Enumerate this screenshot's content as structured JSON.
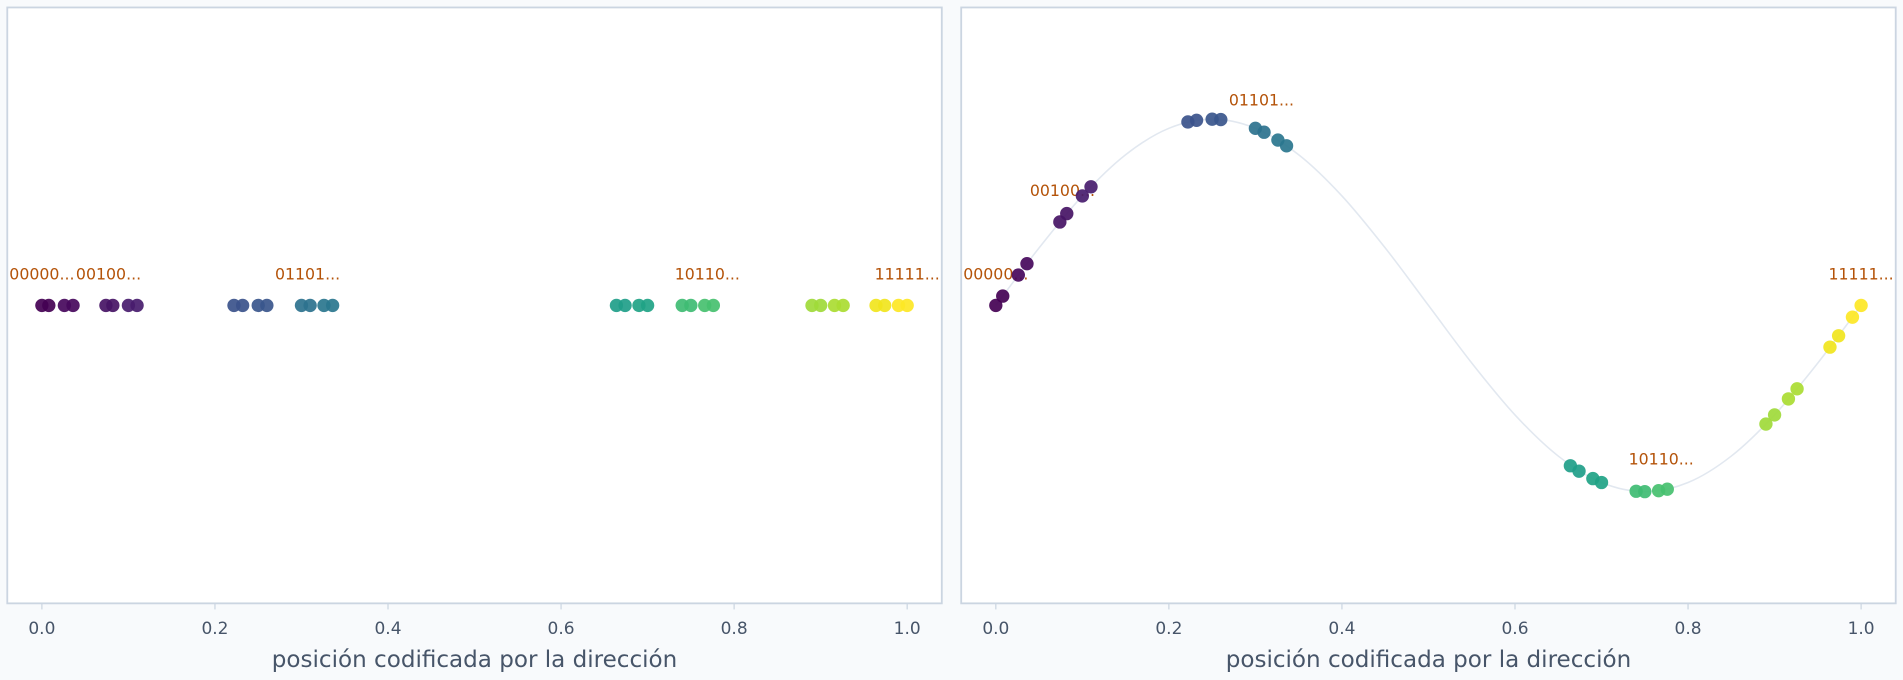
{
  "chart_data": [
    {
      "type": "scatter",
      "xlabel": "posición codificada por la dirección",
      "x": [
        0.0,
        0.008,
        0.026,
        0.036,
        0.074,
        0.082,
        0.1,
        0.11,
        0.222,
        0.232,
        0.25,
        0.26,
        0.3,
        0.31,
        0.326,
        0.336,
        0.664,
        0.674,
        0.69,
        0.7,
        0.74,
        0.75,
        0.766,
        0.776,
        0.89,
        0.9,
        0.916,
        0.926,
        0.964,
        0.974,
        0.99,
        1.0
      ],
      "values": [
        0,
        0,
        0,
        0,
        0,
        0,
        0,
        0,
        0,
        0,
        0,
        0,
        0,
        0,
        0,
        0,
        0,
        0,
        0,
        0,
        0,
        0,
        0,
        0,
        0,
        0,
        0,
        0,
        0,
        0,
        0,
        0
      ],
      "colors": [
        "#440154",
        "#440154",
        "#46085c",
        "#46085c",
        "#471365",
        "#471365",
        "#481c6e",
        "#481c6e",
        "#3b528b",
        "#3b528b",
        "#39568c",
        "#39568c",
        "#2c728e",
        "#2c728e",
        "#2a768e",
        "#2a768e",
        "#1f9e89",
        "#1f9e89",
        "#20a386",
        "#20a386",
        "#3fbc73",
        "#3fbc73",
        "#46c06f",
        "#46c06f",
        "#a0da39",
        "#a0da39",
        "#aadc32",
        "#aadc32",
        "#f1e51d",
        "#f1e51d",
        "#fde725",
        "#fde725"
      ],
      "xlim": [
        -0.04,
        1.04
      ],
      "ylim": [
        -1.6,
        1.6
      ],
      "xticks": [
        {
          "value": 0,
          "label": "0.0"
        },
        0.2,
        0.4,
        0.6,
        0.8,
        {
          "value": 1,
          "label": "1.0"
        }
      ],
      "annotations": [
        {
          "text": "00000...",
          "x": 0,
          "y": 0
        },
        {
          "text": "00100...",
          "x": 0.077,
          "y": 0
        },
        {
          "text": "01101...",
          "x": 0.307,
          "y": 0
        },
        {
          "text": "10110...",
          "x": 0.769,
          "y": 0
        },
        {
          "text": "11111...",
          "x": 1,
          "y": 0
        }
      ]
    },
    {
      "type": "scatter",
      "xlabel": "posición codificada por la dirección",
      "x": [
        0.0,
        0.008,
        0.026,
        0.036,
        0.074,
        0.082,
        0.1,
        0.11,
        0.222,
        0.232,
        0.25,
        0.26,
        0.3,
        0.31,
        0.326,
        0.336,
        0.664,
        0.674,
        0.69,
        0.7,
        0.74,
        0.75,
        0.766,
        0.776,
        0.89,
        0.9,
        0.916,
        0.926,
        0.964,
        0.974,
        0.99,
        1.0
      ],
      "values": [
        0,
        0.05,
        0.163,
        0.224,
        0.448,
        0.493,
        0.588,
        0.637,
        0.985,
        0.994,
        1,
        0.998,
        0.951,
        0.93,
        0.888,
        0.857,
        -0.861,
        -0.89,
        -0.93,
        -0.951,
        -0.998,
        -1,
        -0.995,
        -0.987,
        -0.637,
        -0.588,
        -0.502,
        -0.448,
        -0.224,
        -0.163,
        -0.063,
        0
      ],
      "colors": [
        "#440154",
        "#440154",
        "#46085c",
        "#46085c",
        "#471365",
        "#471365",
        "#481c6e",
        "#481c6e",
        "#3b528b",
        "#3b528b",
        "#39568c",
        "#39568c",
        "#2c728e",
        "#2c728e",
        "#2a768e",
        "#2a768e",
        "#1f9e89",
        "#1f9e89",
        "#20a386",
        "#20a386",
        "#3fbc73",
        "#3fbc73",
        "#46c06f",
        "#46c06f",
        "#a0da39",
        "#a0da39",
        "#aadc32",
        "#aadc32",
        "#f1e51d",
        "#f1e51d",
        "#fde725",
        "#fde725"
      ],
      "xlim": [
        -0.04,
        1.04
      ],
      "ylim": [
        -1.6,
        1.6
      ],
      "xticks": [
        {
          "value": 0,
          "label": "0.0"
        },
        0.2,
        0.4,
        0.6,
        0.8,
        {
          "value": 1,
          "label": "1.0"
        }
      ],
      "curve": {
        "x": [
          0,
          0.05,
          0.1,
          0.15,
          0.2,
          0.25,
          0.3,
          0.35,
          0.4,
          0.45,
          0.5,
          0.55,
          0.6,
          0.65,
          0.7,
          0.75,
          0.8,
          0.85,
          0.9,
          0.95,
          1
        ],
        "y": [
          0,
          0.309,
          0.588,
          0.809,
          0.951,
          1,
          0.951,
          0.809,
          0.588,
          0.309,
          0,
          -0.309,
          -0.588,
          -0.809,
          -0.951,
          -1,
          -0.951,
          -0.809,
          -0.588,
          -0.309,
          0
        ]
      },
      "annotations": [
        {
          "text": "00000...",
          "x": 0,
          "y": 0
        },
        {
          "text": "00100...",
          "x": 0.077,
          "y": 0.45
        },
        {
          "text": "01101...",
          "x": 0.307,
          "y": 0.935
        },
        {
          "text": "10110...",
          "x": 0.769,
          "y": -0.993
        },
        {
          "text": "11111...",
          "x": 1,
          "y": 0
        }
      ]
    }
  ]
}
